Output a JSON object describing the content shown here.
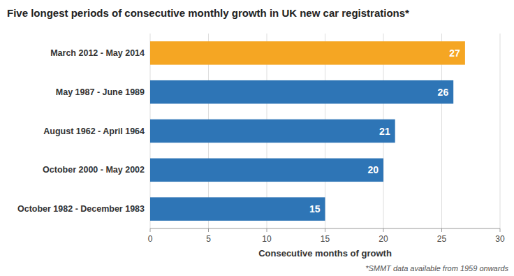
{
  "chart_data": {
    "type": "bar",
    "orientation": "horizontal",
    "title": "Five longest periods of consecutive monthly growth in UK new car registrations*",
    "categories": [
      "October 1982 - December 1983",
      "October 2000 - May 2002",
      "August 1962 - April 1964",
      "May 1987 - June 1989",
      "March 2012 - May 2014"
    ],
    "values": [
      15,
      20,
      21,
      26,
      27
    ],
    "colors": [
      "#2E75B6",
      "#2E75B6",
      "#2E75B6",
      "#2E75B6",
      "#F5A623"
    ],
    "xlabel": "Consecutive months of growth",
    "xlim": [
      0,
      30
    ],
    "xticks": [
      0,
      5,
      10,
      15,
      20,
      25,
      30
    ],
    "grid": true,
    "data_labels": true,
    "annotations": [
      "*SMMT data available from 1959 onwards"
    ]
  }
}
